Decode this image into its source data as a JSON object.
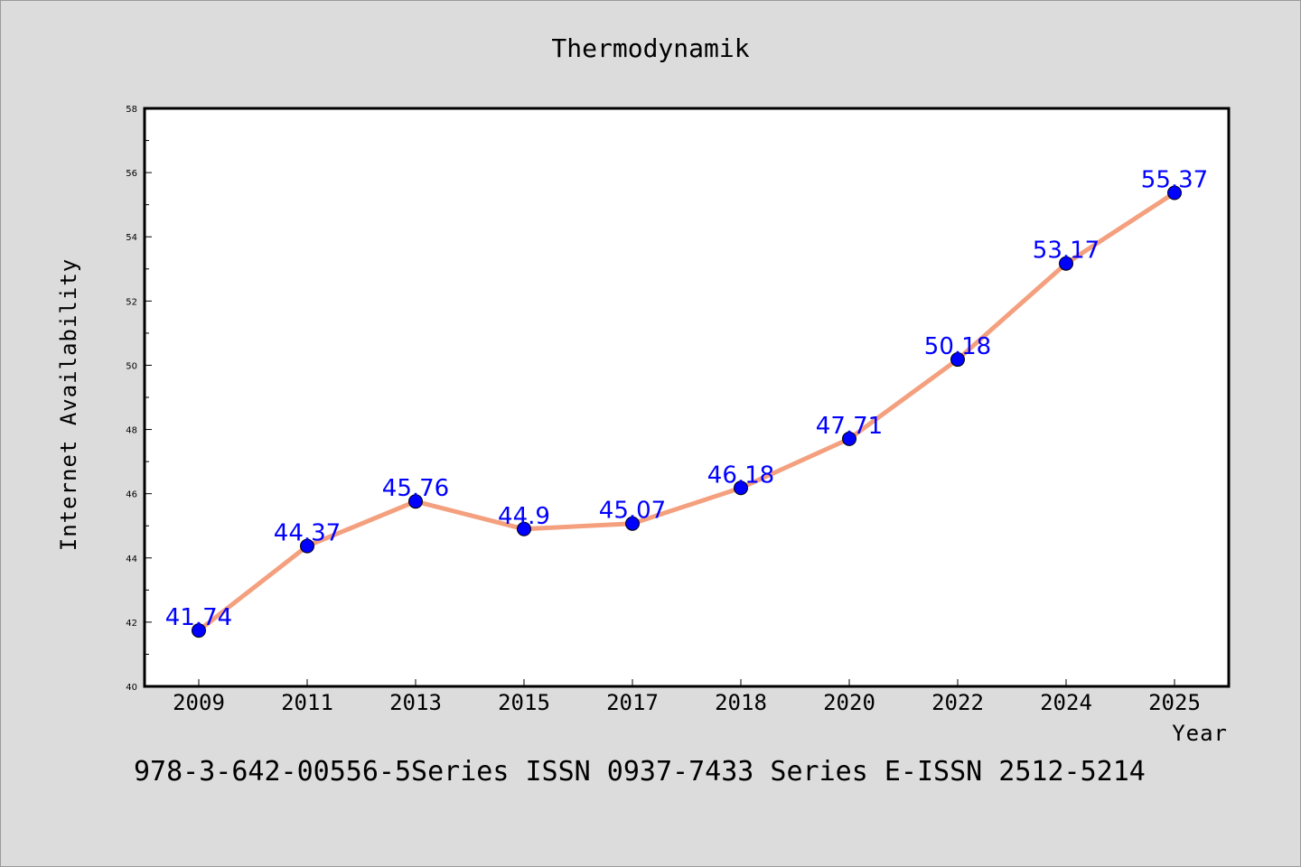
{
  "chart_data": {
    "type": "line",
    "title": "Thermodynamik",
    "xlabel": "Year",
    "ylabel": "Internet Availability",
    "categories": [
      "2009",
      "2011",
      "2013",
      "2015",
      "2017",
      "2018",
      "2020",
      "2022",
      "2024",
      "2025"
    ],
    "values": [
      41.74,
      44.37,
      45.76,
      44.9,
      45.07,
      46.18,
      47.71,
      50.18,
      53.17,
      55.37
    ],
    "data_labels": [
      "41.74",
      "44.37",
      "45.76",
      "44.9",
      "45.07",
      "46.18",
      "47.71",
      "50.18",
      "53.17",
      "55.37"
    ],
    "ylim": [
      40,
      58
    ],
    "yticks": [
      40,
      42,
      44,
      46,
      48,
      50,
      52,
      54,
      56,
      58
    ],
    "grid": false,
    "colors": {
      "line": "#f4a07e",
      "marker": "#0000ff",
      "label": "#0000ff",
      "background": "#dcdcdc",
      "plot_background": "#ffffff"
    }
  },
  "footer_text": "978-3-642-00556-5Series ISSN 0937-7433 Series E-ISSN 2512-5214"
}
